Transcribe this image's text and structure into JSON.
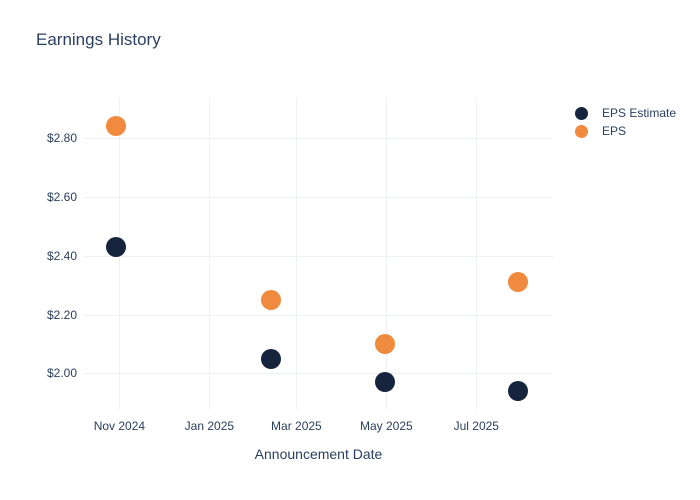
{
  "chart_data": {
    "type": "scatter",
    "title": "Earnings History",
    "xlabel": "Announcement Date",
    "ylabel": "",
    "grid": true,
    "legend_position": "right",
    "x_range": [
      "2024-10-08",
      "2025-08-22"
    ],
    "y_range": [
      1.875,
      2.937
    ],
    "x_ticks": [
      {
        "date": "2024-11-01",
        "label": "Nov 2024"
      },
      {
        "date": "2025-01-01",
        "label": "Jan 2025"
      },
      {
        "date": "2025-03-01",
        "label": "Mar 2025"
      },
      {
        "date": "2025-05-01",
        "label": "May 2025"
      },
      {
        "date": "2025-07-01",
        "label": "Jul 2025"
      }
    ],
    "y_ticks": [
      {
        "value": 2.0,
        "label": "$2.00"
      },
      {
        "value": 2.2,
        "label": "$2.20"
      },
      {
        "value": 2.4,
        "label": "$2.40"
      },
      {
        "value": 2.6,
        "label": "$2.60"
      },
      {
        "value": 2.8,
        "label": "$2.80"
      }
    ],
    "series": [
      {
        "name": "EPS Estimate",
        "color": "#16243e",
        "points": [
          {
            "date": "2024-10-30",
            "value": 2.43
          },
          {
            "date": "2025-02-12",
            "value": 2.05
          },
          {
            "date": "2025-04-30",
            "value": 1.97
          },
          {
            "date": "2025-07-29",
            "value": 1.94
          }
        ]
      },
      {
        "name": "EPS",
        "color": "#f08a3e",
        "points": [
          {
            "date": "2024-10-30",
            "value": 2.84
          },
          {
            "date": "2025-02-12",
            "value": 2.25
          },
          {
            "date": "2025-04-30",
            "value": 2.1
          },
          {
            "date": "2025-07-29",
            "value": 2.31
          }
        ]
      }
    ],
    "colors": {
      "text": "#2a3f5f",
      "grid": "#edf0f4",
      "background": "#ffffff"
    }
  }
}
